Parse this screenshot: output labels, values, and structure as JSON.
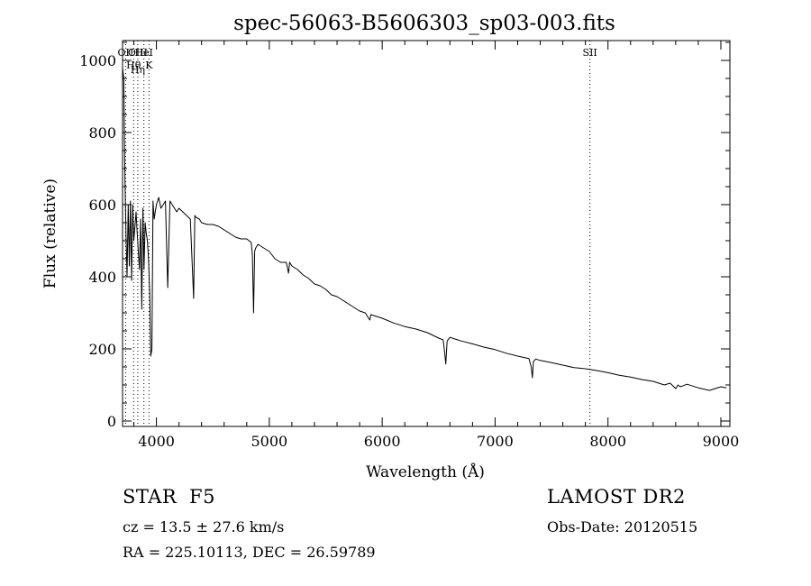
{
  "chart_data": {
    "type": "line",
    "title": "spec-56063-B5606303_sp03-003.fits",
    "xlabel": "Wavelength (Å)",
    "ylabel": "Flux (relative)",
    "xlim": [
      3700,
      9080
    ],
    "ylim": [
      -15,
      1055
    ],
    "x_ticks": [
      4000,
      5000,
      6000,
      7000,
      8000,
      9000
    ],
    "y_ticks": [
      0,
      200,
      400,
      600,
      800,
      1000
    ],
    "grid": false,
    "series": [
      {
        "x": [
          3700,
          3710,
          3720,
          3730,
          3740,
          3750,
          3760,
          3770,
          3780,
          3790,
          3800,
          3810,
          3820,
          3830,
          3840,
          3850,
          3860,
          3870,
          3880,
          3890,
          3900,
          3910,
          3920,
          3930,
          3940,
          3950,
          3960,
          3970,
          3980,
          3990,
          4000,
          4020,
          4040,
          4060,
          4080,
          4100,
          4120,
          4140,
          4160,
          4180,
          4200,
          4250,
          4300,
          4330,
          4340,
          4350,
          4380,
          4400,
          4450,
          4500,
          4550,
          4600,
          4650,
          4700,
          4750,
          4800,
          4840,
          4850,
          4861,
          4870,
          4880,
          4900,
          4950,
          5000,
          5050,
          5100,
          5150,
          5170,
          5180,
          5200,
          5250,
          5300,
          5350,
          5400,
          5450,
          5500,
          5550,
          5600,
          5650,
          5700,
          5750,
          5800,
          5850,
          5890,
          5900,
          5950,
          6000,
          6100,
          6200,
          6300,
          6400,
          6500,
          6540,
          6550,
          6563,
          6575,
          6600,
          6700,
          6800,
          6900,
          7000,
          7100,
          7200,
          7300,
          7320,
          7330,
          7340,
          7360,
          7400,
          7500,
          7600,
          7700,
          7800,
          7900,
          8000,
          8100,
          8200,
          8300,
          8400,
          8500,
          8550,
          8600,
          8620,
          8640,
          8660,
          8700,
          8800,
          8900,
          9000,
          9050
        ],
        "y": [
          980,
          950,
          700,
          520,
          400,
          600,
          430,
          610,
          390,
          600,
          500,
          540,
          580,
          520,
          470,
          420,
          560,
          310,
          590,
          420,
          550,
          520,
          500,
          450,
          360,
          180,
          200,
          610,
          560,
          580,
          600,
          620,
          590,
          600,
          610,
          370,
          610,
          600,
          590,
          580,
          590,
          575,
          560,
          340,
          570,
          565,
          560,
          550,
          545,
          545,
          540,
          530,
          520,
          510,
          505,
          505,
          495,
          460,
          300,
          470,
          480,
          490,
          480,
          470,
          450,
          440,
          440,
          410,
          440,
          430,
          420,
          405,
          395,
          380,
          375,
          365,
          350,
          345,
          335,
          325,
          315,
          305,
          300,
          280,
          295,
          290,
          285,
          272,
          262,
          255,
          245,
          230,
          225,
          200,
          158,
          222,
          232,
          222,
          214,
          205,
          198,
          188,
          180,
          173,
          150,
          120,
          165,
          172,
          168,
          162,
          155,
          148,
          145,
          140,
          134,
          127,
          122,
          115,
          110,
          100,
          105,
          90,
          100,
          95,
          97,
          102,
          92,
          85,
          95,
          92
        ]
      }
    ],
    "annotations": [
      {
        "x": 3727,
        "labels": [
          "OII"
        ]
      },
      {
        "x": 3798,
        "labels": [
          "Hθ"
        ]
      },
      {
        "x": 3835,
        "labels": [
          "OIII",
          "Hη"
        ]
      },
      {
        "x": 3889,
        "labels": [
          "HeI"
        ]
      },
      {
        "x": 3934,
        "labels": [
          "K"
        ]
      },
      {
        "x": 7840,
        "labels": [
          "SII"
        ]
      }
    ]
  },
  "info": {
    "class": "STAR",
    "subclass": "F5",
    "survey": "LAMOST DR2",
    "cz": "cz = 13.5 ± 27.6 km/s",
    "obsdate": "Obs-Date: 20120515",
    "coords": "RA = 225.10113, DEC =  26.59789"
  }
}
